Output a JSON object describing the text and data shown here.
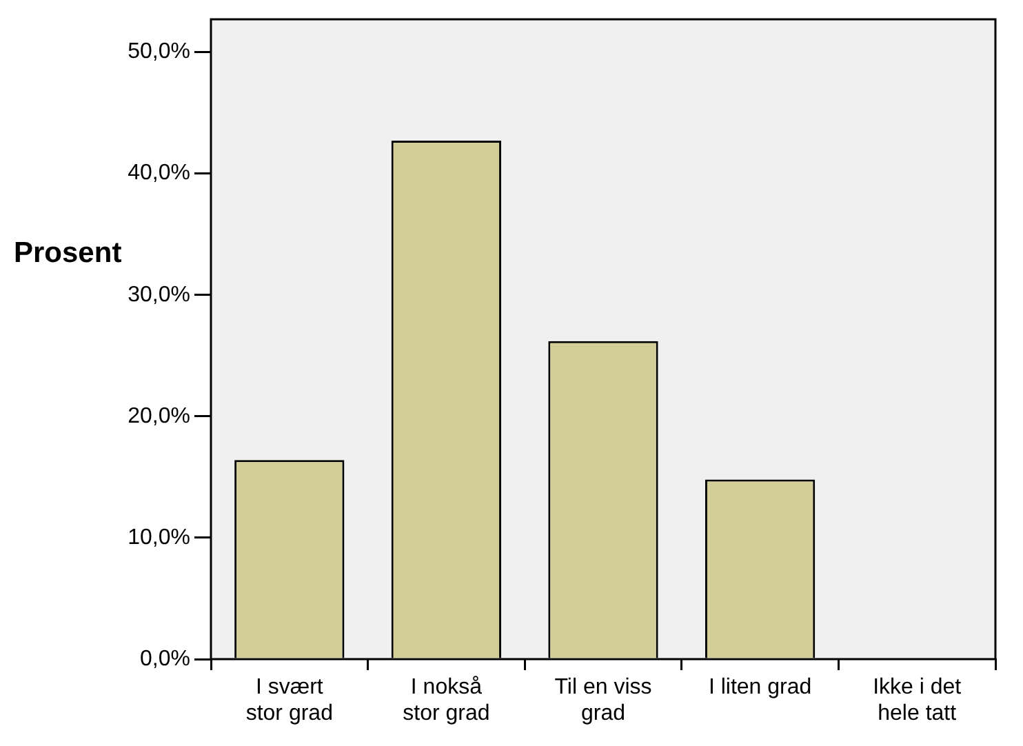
{
  "chart_data": {
    "type": "bar",
    "ylabel": "Prosent",
    "categories": [
      "I svært stor grad",
      "I nokså stor grad",
      "Til en viss grad",
      "I liten grad",
      "Ikke i det hele tatt"
    ],
    "values": [
      16.4,
      42.7,
      26.2,
      14.8,
      0
    ],
    "color": "#d3ce97",
    "ylim": [
      0,
      52.7
    ],
    "yticks": [
      {
        "value": 0,
        "label": "0,0%"
      },
      {
        "value": 10,
        "label": "10,0%"
      },
      {
        "value": 20,
        "label": "20,0%"
      },
      {
        "value": 30,
        "label": "30,0%"
      },
      {
        "value": 40,
        "label": "40,0%"
      },
      {
        "value": 50,
        "label": "50,0%"
      }
    ],
    "legend": false
  }
}
